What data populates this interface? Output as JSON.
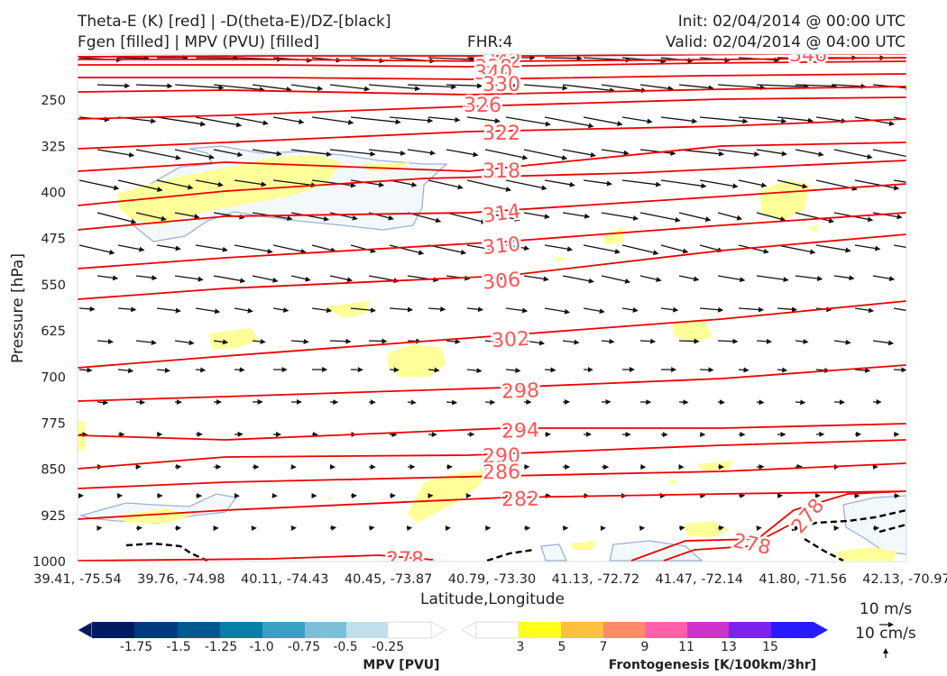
{
  "header": {
    "title_line1": "Theta-E (K) [red] | -D(theta-E)/DZ-[black]",
    "title_line2": "Fgen [filled] | MPV (PVU) [filled]",
    "fhr": "FHR:4",
    "init": "Init: 02/04/2014 @ 00:00 UTC",
    "valid": "Valid: 02/04/2014 @ 04:00 UTC"
  },
  "colors": {
    "theta_e": "#ee0000",
    "theta_e_label": "#ff5555",
    "fgen_3": "#ffff99",
    "mpv_fill": "#f3f9fb",
    "mpv_line": "#9db1d6",
    "vector": "#111111",
    "frame": "#dddddd"
  },
  "chart_data": {
    "type": "cross-section",
    "xlabel": "Latitude,Longitude",
    "ylabel": "Pressure [hPa]",
    "ylim": [
      1000,
      175
    ],
    "x_ticks": [
      "39.41, -75.54",
      "39.76, -74.98",
      "40.11, -74.43",
      "40.45, -73.87",
      "40.79, -73.30",
      "41.13, -72.72",
      "41.47, -72.14",
      "41.80, -71.56",
      "42.13, -70.97"
    ],
    "y_ticks": [
      250,
      325,
      400,
      475,
      550,
      625,
      700,
      775,
      850,
      925,
      1000
    ],
    "theta_e_contour_labels": [
      "342",
      "338",
      "340",
      "330",
      "326",
      "322",
      "318",
      "314",
      "310",
      "306",
      "302",
      "298",
      "294",
      "290",
      "286",
      "282",
      "278",
      "278",
      "278",
      "346"
    ],
    "vector_reference": {
      "horizontal": "10 m/s",
      "vertical": "10 cm/s"
    },
    "colorbars": [
      {
        "label": "MPV [PVU]",
        "ticks": [
          "-1.75",
          "-1.5",
          "-1.25",
          "-1.0",
          "-0.75",
          "-0.5",
          "-0.25"
        ]
      },
      {
        "label": "Frontogenesis [K/100km/3hr]",
        "ticks": [
          "3",
          "5",
          "7",
          "9",
          "11",
          "13",
          "15"
        ]
      }
    ]
  }
}
